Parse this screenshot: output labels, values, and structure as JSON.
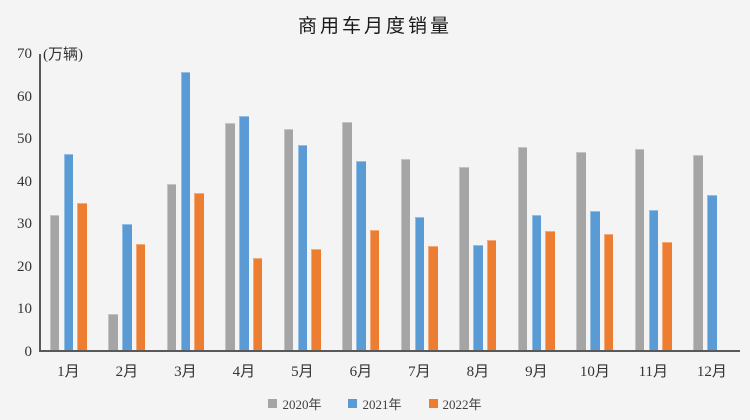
{
  "chart_data": {
    "type": "bar",
    "title": "商用车月度销量",
    "ylabel": "(万辆)",
    "xlabel": "",
    "ylim": [
      0,
      70
    ],
    "yticks": [
      0,
      10,
      20,
      30,
      40,
      50,
      60,
      70
    ],
    "grid": false,
    "legend_position": "bottom-center",
    "categories": [
      "1月",
      "2月",
      "3月",
      "4月",
      "5月",
      "6月",
      "7月",
      "8月",
      "9月",
      "10月",
      "11月",
      "12月"
    ],
    "series": [
      {
        "name": "2020年",
        "color": "#a5a5a5",
        "values": [
          31.8,
          8.5,
          38.9,
          53.4,
          52.0,
          53.6,
          44.8,
          43.0,
          47.8,
          46.4,
          47.3,
          45.7
        ]
      },
      {
        "name": "2021年",
        "color": "#5b9bd5",
        "values": [
          46.0,
          29.7,
          65.2,
          55.0,
          48.1,
          44.5,
          31.2,
          24.7,
          31.8,
          32.6,
          33.0,
          36.4
        ]
      },
      {
        "name": "2022年",
        "color": "#ed7d31",
        "values": [
          34.5,
          24.9,
          37.0,
          21.7,
          23.8,
          28.2,
          24.5,
          25.9,
          28.0,
          27.2,
          25.4,
          null
        ]
      }
    ],
    "colors": {
      "axis": "#595959",
      "background": "#f4f4f5",
      "tick_text": "#333333",
      "title_text": "#1a1a1a",
      "legend_text": "#404040"
    }
  }
}
